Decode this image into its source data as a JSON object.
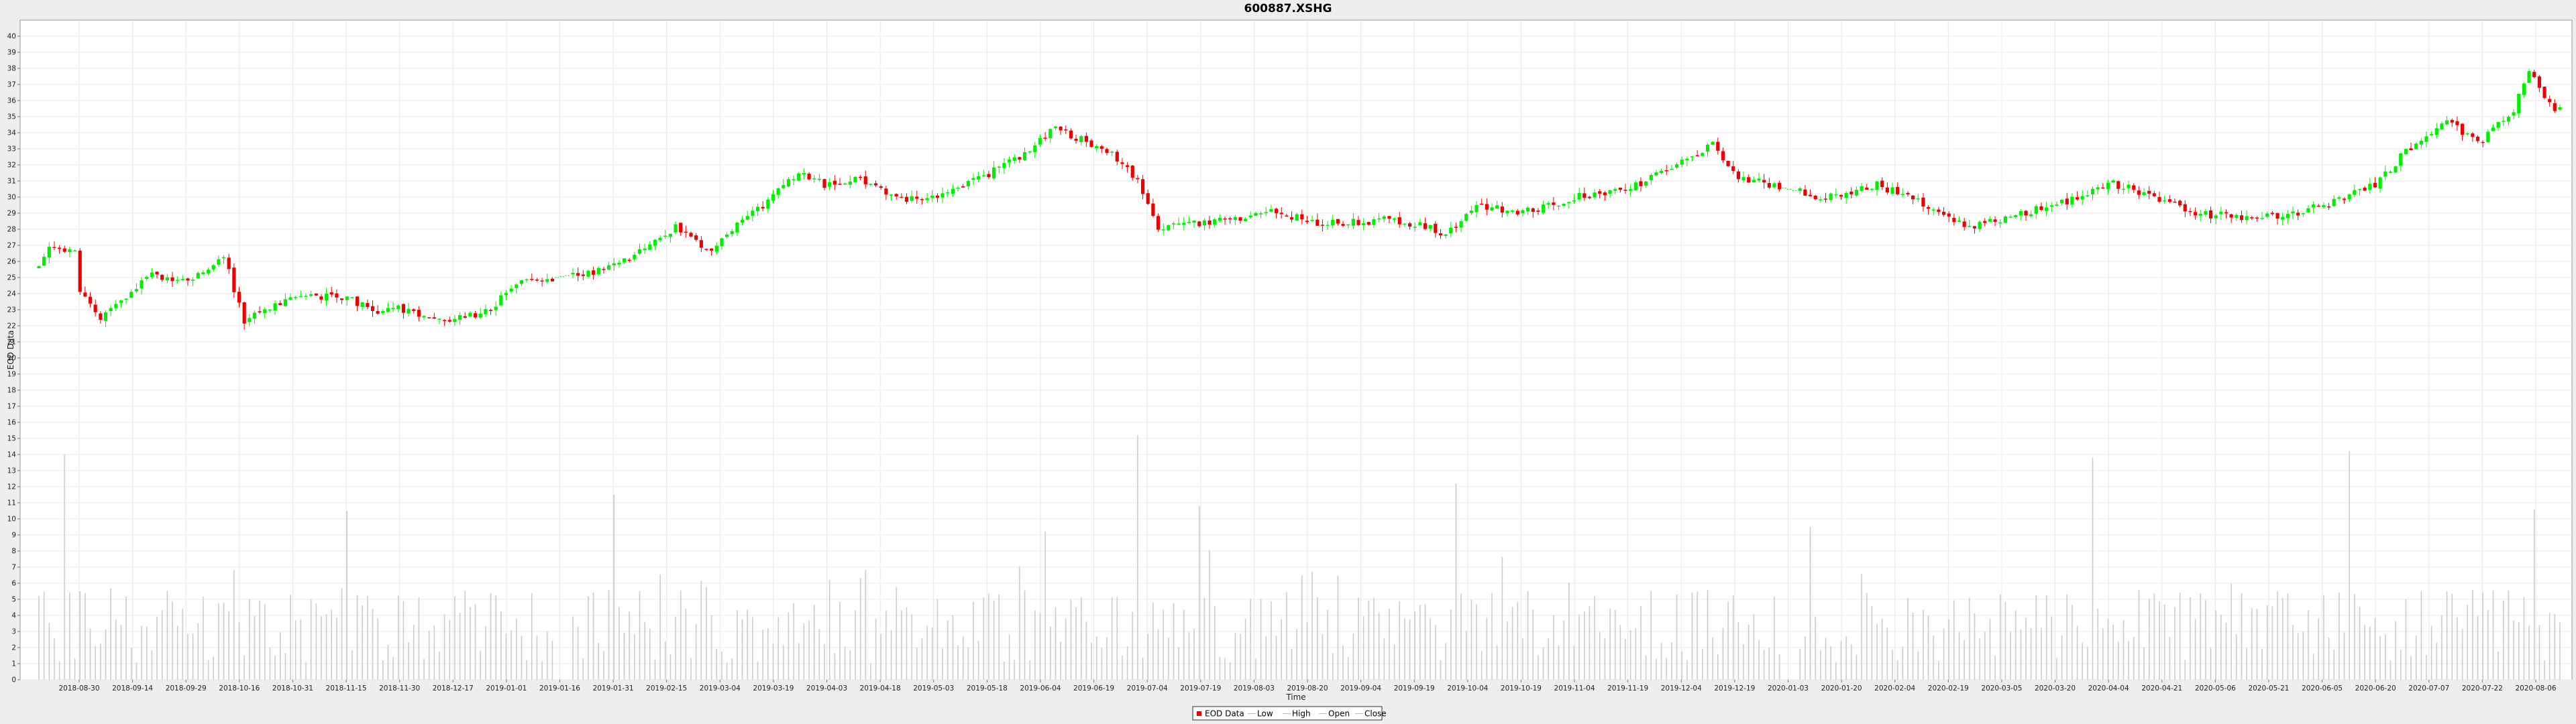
{
  "chart_data": {
    "type": "candlestick",
    "title": "600887.XSHG",
    "xlabel": "Time",
    "ylabel": "EOD Data",
    "ylim": [
      0,
      41
    ],
    "grid": true,
    "x_ticks": [
      "2018-08-30",
      "2018-09-14",
      "2018-09-29",
      "2018-10-16",
      "2018-10-31",
      "2018-11-15",
      "2018-11-30",
      "2018-12-17",
      "2019-01-01",
      "2019-01-16",
      "2019-01-31",
      "2019-02-15",
      "2019-03-04",
      "2019-03-19",
      "2019-04-03",
      "2019-04-18",
      "2019-05-03",
      "2019-05-18",
      "2019-06-04",
      "2019-06-19",
      "2019-07-04",
      "2019-07-19",
      "2019-08-03",
      "2019-08-20",
      "2019-09-04",
      "2019-09-19",
      "2019-10-04",
      "2019-10-19",
      "2019-11-04",
      "2019-11-19",
      "2019-12-04",
      "2019-12-19",
      "2020-01-03",
      "2020-01-20",
      "2020-02-04",
      "2020-02-19",
      "2020-03-05",
      "2020-03-20",
      "2020-04-04",
      "2020-04-21",
      "2020-05-06",
      "2020-05-21",
      "2020-06-05",
      "2020-06-20",
      "2020-07-07",
      "2020-07-22",
      "2020-08-06"
    ],
    "y_ticks": [
      0,
      1,
      2,
      3,
      4,
      5,
      6,
      7,
      8,
      9,
      10,
      11,
      12,
      13,
      14,
      15,
      16,
      17,
      18,
      19,
      20,
      21,
      22,
      23,
      24,
      25,
      26,
      27,
      28,
      29,
      30,
      31,
      32,
      33,
      34,
      35,
      36,
      37,
      38,
      39,
      40
    ],
    "close_trend": [
      [
        0,
        25.5
      ],
      [
        2,
        26.9
      ],
      [
        7,
        26.5
      ],
      [
        8,
        23.9
      ],
      [
        12,
        22.6
      ],
      [
        17,
        23.8
      ],
      [
        22,
        25.2
      ],
      [
        30,
        24.8
      ],
      [
        36,
        26.4
      ],
      [
        40,
        22.2
      ],
      [
        44,
        23.1
      ],
      [
        50,
        23.7
      ],
      [
        58,
        23.9
      ],
      [
        66,
        22.9
      ],
      [
        70,
        23.2
      ],
      [
        76,
        22.3
      ],
      [
        86,
        22.7
      ],
      [
        94,
        24.6
      ],
      [
        108,
        25.4
      ],
      [
        118,
        26.7
      ],
      [
        124,
        28.1
      ],
      [
        130,
        26.6
      ],
      [
        142,
        29.8
      ],
      [
        148,
        31.4
      ],
      [
        154,
        30.7
      ],
      [
        160,
        31.2
      ],
      [
        168,
        29.9
      ],
      [
        178,
        30.3
      ],
      [
        184,
        31.3
      ],
      [
        192,
        32.7
      ],
      [
        198,
        34.4
      ],
      [
        204,
        33.4
      ],
      [
        210,
        32.4
      ],
      [
        214,
        31.0
      ],
      [
        218,
        28.2
      ],
      [
        230,
        28.5
      ],
      [
        240,
        29.1
      ],
      [
        250,
        28.3
      ],
      [
        262,
        28.6
      ],
      [
        270,
        28.2
      ],
      [
        274,
        27.6
      ],
      [
        280,
        29.4
      ],
      [
        290,
        29.1
      ],
      [
        300,
        30.0
      ],
      [
        310,
        30.6
      ],
      [
        318,
        31.9
      ],
      [
        326,
        33.2
      ],
      [
        330,
        31.4
      ],
      [
        348,
        29.9
      ],
      [
        358,
        30.8
      ],
      [
        368,
        29.4
      ],
      [
        376,
        28.1
      ],
      [
        386,
        29.0
      ],
      [
        394,
        29.6
      ],
      [
        404,
        30.8
      ],
      [
        412,
        30.1
      ],
      [
        420,
        29.0
      ],
      [
        430,
        28.7
      ],
      [
        438,
        28.9
      ],
      [
        448,
        29.8
      ],
      [
        456,
        31.0
      ],
      [
        460,
        32.5
      ],
      [
        468,
        34.7
      ],
      [
        476,
        33.5
      ],
      [
        482,
        35.5
      ],
      [
        485,
        37.7
      ],
      [
        490,
        35.4
      ]
    ],
    "volume_spikes": [
      [
        5,
        14.0
      ],
      [
        60,
        10.5
      ],
      [
        112,
        11.5
      ],
      [
        196,
        9.2
      ],
      [
        214,
        15.2
      ],
      [
        226,
        10.8
      ],
      [
        276,
        12.2
      ],
      [
        345,
        9.5
      ],
      [
        400,
        13.8
      ],
      [
        450,
        14.2
      ],
      [
        486,
        10.6
      ]
    ],
    "gaps": [
      [
        101,
        103
      ],
      [
        340,
        342
      ]
    ],
    "legend": [
      "EOD Data",
      "Low",
      "High",
      "Open",
      "Close"
    ],
    "legend_position": "bottom",
    "colors": {
      "up": "#00ee00",
      "down": "#ee0000",
      "volume": "#cccccc",
      "grid": "#e8e8e8",
      "line": "#00cc00"
    }
  }
}
